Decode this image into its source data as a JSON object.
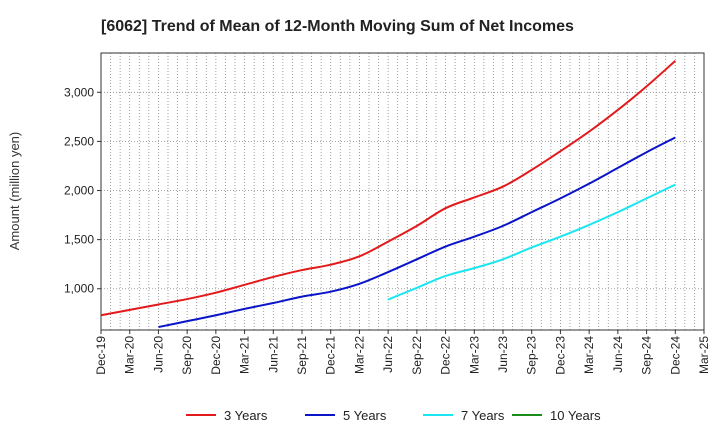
{
  "chart_data": {
    "type": "line",
    "title": "[6062]  Trend of Mean of 12-Month Moving Sum of Net Incomes",
    "ylabel": "Amount (million yen)",
    "xlabel": "",
    "ylim": [
      580,
      3400
    ],
    "y_ticks": [
      1000,
      1500,
      2000,
      2500,
      3000
    ],
    "y_tick_labels": [
      "1,000",
      "1,500",
      "2,000",
      "2,500",
      "3,000"
    ],
    "x_ticks": [
      "Dec-19",
      "Mar-20",
      "Jun-20",
      "Sep-20",
      "Dec-20",
      "Mar-21",
      "Jun-21",
      "Sep-21",
      "Dec-21",
      "Mar-22",
      "Jun-22",
      "Sep-22",
      "Dec-22",
      "Mar-23",
      "Jun-23",
      "Sep-23",
      "Dec-23",
      "Mar-24",
      "Jun-24",
      "Sep-24",
      "Dec-24",
      "Mar-25"
    ],
    "grid": true,
    "legend_position": "bottom",
    "series": [
      {
        "name": "3 Years",
        "color": "#e31a1c",
        "points": [
          [
            "Dec-19",
            730
          ],
          [
            "Mar-20",
            785
          ],
          [
            "Jun-20",
            840
          ],
          [
            "Sep-20",
            895
          ],
          [
            "Dec-20",
            960
          ],
          [
            "Mar-21",
            1040
          ],
          [
            "Jun-21",
            1120
          ],
          [
            "Sep-21",
            1190
          ],
          [
            "Dec-21",
            1245
          ],
          [
            "Mar-22",
            1330
          ],
          [
            "Jun-22",
            1480
          ],
          [
            "Sep-22",
            1640
          ],
          [
            "Dec-22",
            1820
          ],
          [
            "Mar-23",
            1930
          ],
          [
            "Jun-23",
            2040
          ],
          [
            "Sep-23",
            2210
          ],
          [
            "Dec-23",
            2400
          ],
          [
            "Mar-24",
            2600
          ],
          [
            "Jun-24",
            2820
          ],
          [
            "Sep-24",
            3060
          ],
          [
            "Dec-24",
            3320
          ]
        ]
      },
      {
        "name": "5 Years",
        "color": "#0a14c8",
        "points": [
          [
            "Jun-20",
            610
          ],
          [
            "Sep-20",
            670
          ],
          [
            "Dec-20",
            730
          ],
          [
            "Mar-21",
            795
          ],
          [
            "Jun-21",
            855
          ],
          [
            "Sep-21",
            920
          ],
          [
            "Dec-21",
            970
          ],
          [
            "Mar-22",
            1050
          ],
          [
            "Jun-22",
            1170
          ],
          [
            "Sep-22",
            1300
          ],
          [
            "Dec-22",
            1430
          ],
          [
            "Mar-23",
            1530
          ],
          [
            "Jun-23",
            1640
          ],
          [
            "Sep-23",
            1780
          ],
          [
            "Dec-23",
            1920
          ],
          [
            "Mar-24",
            2070
          ],
          [
            "Jun-24",
            2230
          ],
          [
            "Sep-24",
            2390
          ],
          [
            "Dec-24",
            2540
          ]
        ]
      },
      {
        "name": "7 Years",
        "color": "#19e6f0",
        "points": [
          [
            "Jun-22",
            890
          ],
          [
            "Sep-22",
            1010
          ],
          [
            "Dec-22",
            1130
          ],
          [
            "Mar-23",
            1210
          ],
          [
            "Jun-23",
            1300
          ],
          [
            "Sep-23",
            1420
          ],
          [
            "Dec-23",
            1530
          ],
          [
            "Mar-24",
            1650
          ],
          [
            "Jun-24",
            1780
          ],
          [
            "Sep-24",
            1920
          ],
          [
            "Dec-24",
            2060
          ]
        ]
      },
      {
        "name": "10 Years",
        "color": "#1a8c1a",
        "points": []
      }
    ]
  }
}
